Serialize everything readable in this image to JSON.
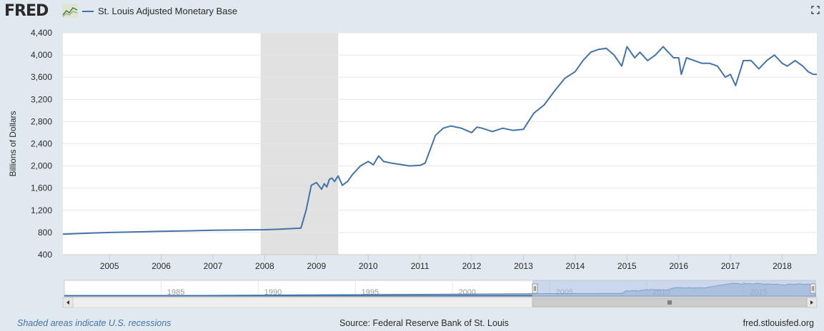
{
  "header": {
    "logo": "FRED",
    "legend_label": "St. Louis Adjusted Monetary Base",
    "series_color": "#4572a7"
  },
  "footer": {
    "recession_note": "Shaded areas indicate U.S. recessions",
    "source": "Source: Federal Reserve Bank of St. Louis",
    "site": "fred.stlouisfed.org"
  },
  "navigator": {
    "labels": [
      "1985",
      "1990",
      "1995",
      "2000",
      "2005",
      "2010",
      "2015"
    ],
    "label_years": [
      1985,
      1990,
      1995,
      2000,
      2005,
      2010,
      2015
    ],
    "range": [
      1980,
      2018.67
    ],
    "selected_range": [
      2004.1,
      2018.67
    ]
  },
  "chart_data": {
    "type": "line",
    "title": "",
    "xlabel": "",
    "ylabel": "Billions of Dollars",
    "xlim": [
      2004.1,
      2018.67
    ],
    "ylim": [
      400,
      4400
    ],
    "grid": true,
    "yticks": [
      400,
      800,
      1200,
      1600,
      2000,
      2400,
      2800,
      3200,
      3600,
      4000,
      4400
    ],
    "ytick_labels": [
      "400",
      "800",
      "1,200",
      "1,600",
      "2,000",
      "2,400",
      "2,800",
      "3,200",
      "3,600",
      "4,000",
      "4,400"
    ],
    "xtick_labels": [
      "2005",
      "2006",
      "2007",
      "2008",
      "2009",
      "2010",
      "2011",
      "2012",
      "2013",
      "2014",
      "2015",
      "2016",
      "2017",
      "2018"
    ],
    "xticks": [
      2005,
      2006,
      2007,
      2008,
      2009,
      2010,
      2011,
      2012,
      2013,
      2014,
      2015,
      2016,
      2017,
      2018
    ],
    "recessions": [
      [
        2007.92,
        2009.42
      ]
    ],
    "series": [
      {
        "name": "St. Louis Adjusted Monetary Base",
        "x": [
          2004.1,
          2004.5,
          2005.0,
          2005.5,
          2006.0,
          2006.5,
          2007.0,
          2007.5,
          2008.0,
          2008.3,
          2008.5,
          2008.7,
          2008.8,
          2008.9,
          2009.0,
          2009.1,
          2009.15,
          2009.2,
          2009.25,
          2009.3,
          2009.35,
          2009.42,
          2009.5,
          2009.6,
          2009.7,
          2009.85,
          2010.0,
          2010.1,
          2010.2,
          2010.3,
          2010.45,
          2010.6,
          2010.8,
          2011.0,
          2011.1,
          2011.2,
          2011.3,
          2011.45,
          2011.6,
          2011.8,
          2012.0,
          2012.1,
          2012.2,
          2012.4,
          2012.6,
          2012.8,
          2013.0,
          2013.2,
          2013.4,
          2013.6,
          2013.8,
          2014.0,
          2014.15,
          2014.3,
          2014.45,
          2014.6,
          2014.75,
          2014.9,
          2015.0,
          2015.15,
          2015.25,
          2015.4,
          2015.55,
          2015.7,
          2015.8,
          2015.9,
          2016.0,
          2016.05,
          2016.15,
          2016.3,
          2016.45,
          2016.6,
          2016.75,
          2016.9,
          2017.0,
          2017.1,
          2017.25,
          2017.4,
          2017.55,
          2017.7,
          2017.85,
          2018.0,
          2018.1,
          2018.25,
          2018.4,
          2018.5,
          2018.6,
          2018.67
        ],
        "y": [
          770,
          785,
          800,
          810,
          820,
          830,
          840,
          845,
          850,
          860,
          870,
          880,
          1200,
          1650,
          1700,
          1580,
          1680,
          1620,
          1760,
          1780,
          1720,
          1820,
          1650,
          1720,
          1850,
          2000,
          2080,
          2020,
          2180,
          2080,
          2050,
          2030,
          2000,
          2010,
          2050,
          2300,
          2550,
          2680,
          2720,
          2680,
          2600,
          2700,
          2680,
          2620,
          2680,
          2640,
          2660,
          2950,
          3100,
          3350,
          3580,
          3700,
          3900,
          4050,
          4100,
          4120,
          4000,
          3800,
          4150,
          3950,
          4050,
          3900,
          4000,
          4150,
          4050,
          3950,
          3950,
          3650,
          3950,
          3900,
          3850,
          3850,
          3800,
          3600,
          3650,
          3450,
          3900,
          3900,
          3750,
          3900,
          4000,
          3850,
          3800,
          3900,
          3800,
          3700,
          3650,
          3650
        ]
      }
    ]
  }
}
